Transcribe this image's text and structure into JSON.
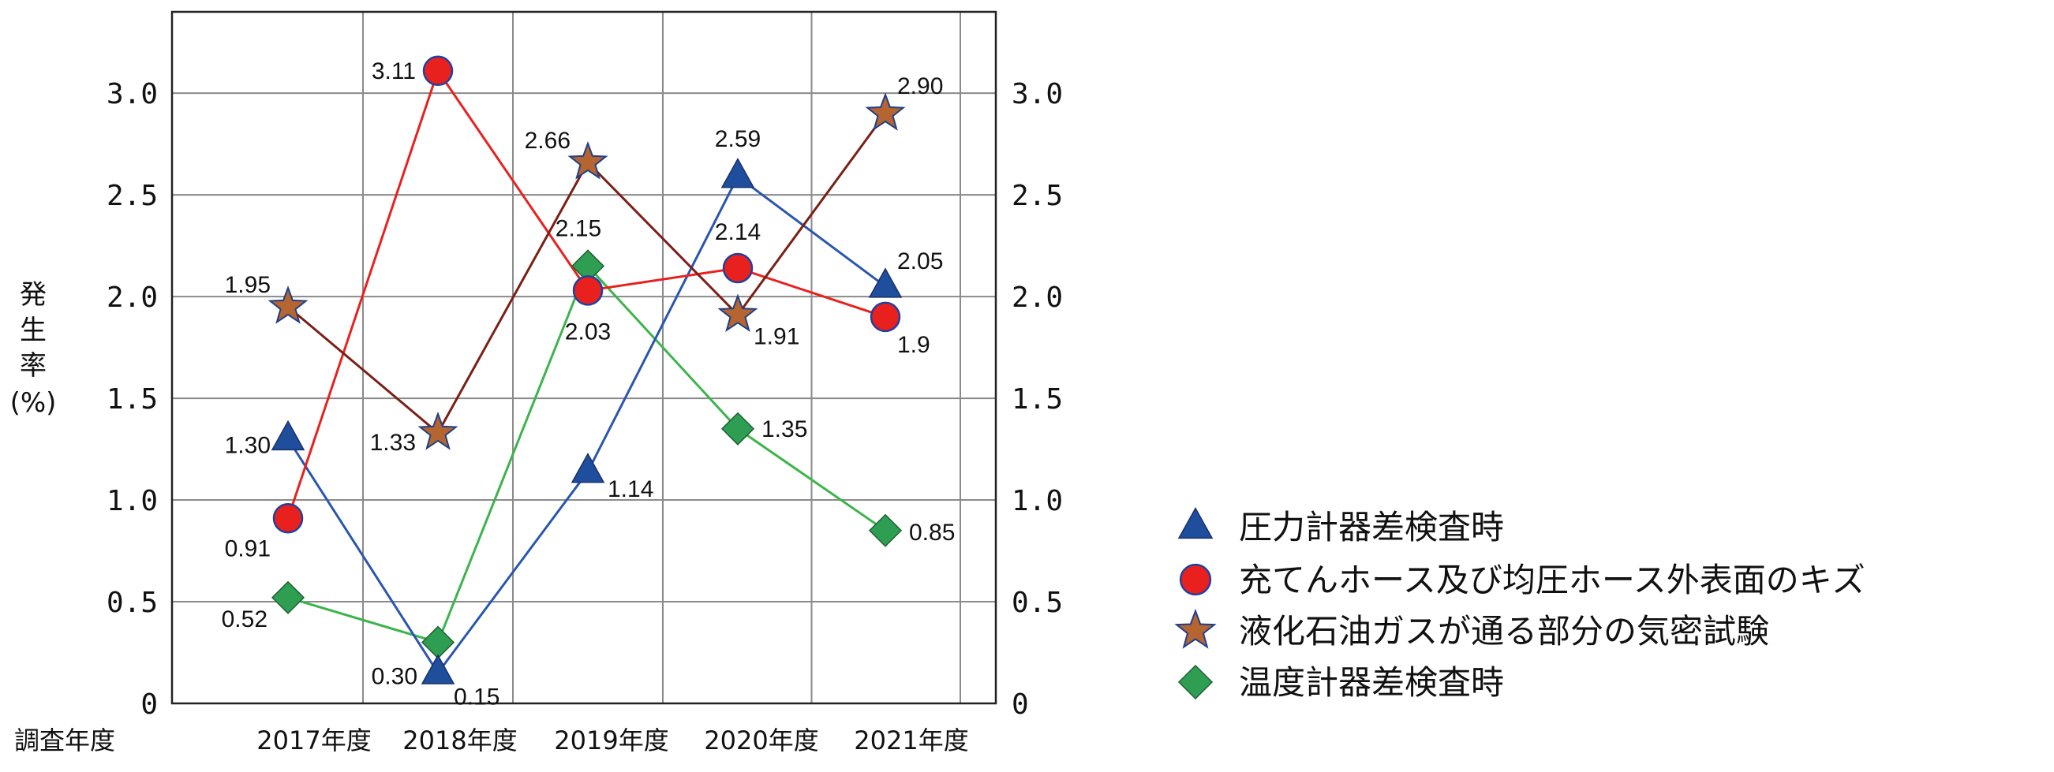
{
  "chart_data": {
    "type": "line",
    "categories": [
      "2017年度",
      "2018年度",
      "2019年度",
      "2020年度",
      "2021年度"
    ],
    "x_axis_title": "調査年度",
    "ylabel_chars": [
      "発",
      "生",
      "率",
      "(%)"
    ],
    "ylim": [
      0,
      3.4
    ],
    "yticks": [
      {
        "value": 0,
        "label": "0"
      },
      {
        "value": 0.5,
        "label": "0.5"
      },
      {
        "value": 1.0,
        "label": "1.0"
      },
      {
        "value": 1.5,
        "label": "1.5"
      },
      {
        "value": 2.0,
        "label": "2.0"
      },
      {
        "value": 2.5,
        "label": "2.5"
      },
      {
        "value": 3.0,
        "label": "3.0"
      }
    ],
    "grid": true,
    "legend_position": "right",
    "series": [
      {
        "name": "圧力計器差検査時",
        "marker": "triangle",
        "color": "#1f4e9c",
        "line_color": "#2a56b0",
        "values": [
          1.3,
          0.15,
          1.14,
          2.59,
          2.05
        ],
        "labels": [
          "1.30",
          "0.15",
          "1.14",
          "2.59",
          "2.05"
        ]
      },
      {
        "name": "充てんホース及び均圧ホース外表面のキズ",
        "marker": "circle",
        "color": "#e8211e",
        "line_color": "#e8211e",
        "values": [
          0.91,
          3.11,
          2.03,
          2.14,
          1.9
        ],
        "labels": [
          "0.91",
          "3.11",
          "2.03",
          "2.14",
          "1.9"
        ]
      },
      {
        "name": "液化石油ガスが通る部分の気密試験",
        "marker": "star",
        "color": "#b5652f",
        "line_color": "#7a1f16",
        "values": [
          1.95,
          1.33,
          2.66,
          1.91,
          2.9
        ],
        "labels": [
          "1.95",
          "1.33",
          "2.66",
          "1.91",
          "2.90"
        ]
      },
      {
        "name": "温度計器差検査時",
        "marker": "diamond",
        "color": "#2e9e52",
        "line_color": "#3cb44b",
        "values": [
          0.52,
          0.3,
          2.15,
          1.35,
          0.85
        ],
        "labels": [
          "0.52",
          "0.30",
          "2.15",
          "1.35",
          "0.85"
        ]
      }
    ]
  }
}
